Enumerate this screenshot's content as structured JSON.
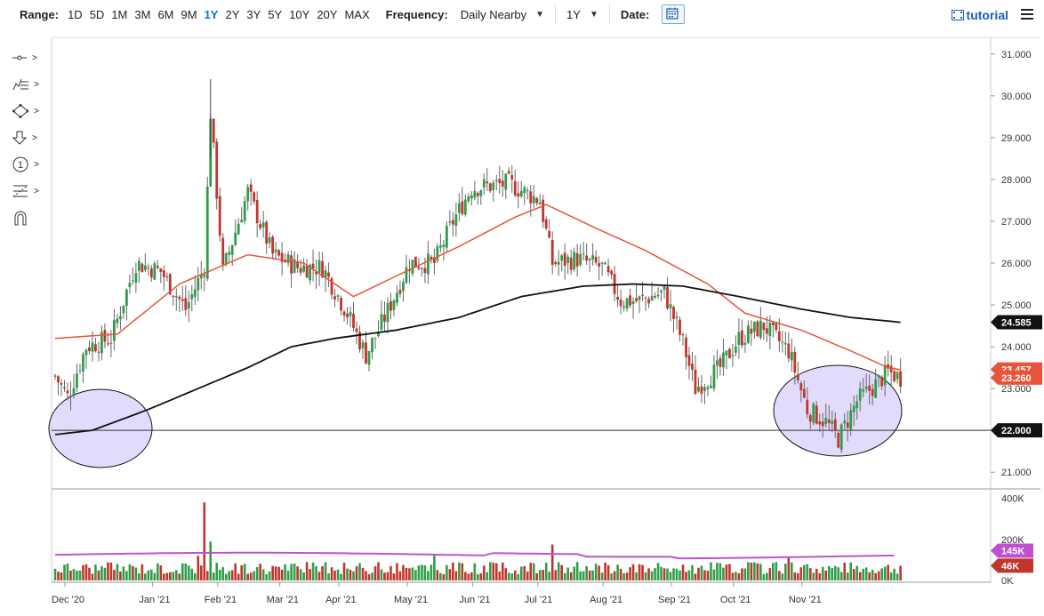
{
  "toolbar": {
    "range_label": "Range:",
    "ranges": [
      "1D",
      "5D",
      "1M",
      "3M",
      "6M",
      "9M",
      "1Y",
      "2Y",
      "3Y",
      "5Y",
      "10Y",
      "20Y",
      "MAX"
    ],
    "active_range": "1Y",
    "frequency_label": "Frequency:",
    "frequency_value": "Daily Nearby",
    "period_value": "1Y",
    "date_label": "Date:",
    "tutorial_label": "tutorial"
  },
  "tools": [
    "crosshair-icon",
    "indicator-list-icon",
    "shapes-icon",
    "arrow-down-icon",
    "number-circle-icon",
    "fibonacci-icon",
    "magnet-icon"
  ],
  "colors": {
    "up": "#2e9e4a",
    "down": "#c2352b",
    "ma_short": "#e8543a",
    "ma_long": "#111111",
    "vol_avg": "#c050d0",
    "highlight_fill": "#d9cffa",
    "highlight_stroke": "#111111"
  },
  "chart_data": {
    "type": "candlestick",
    "y_ticks": [
      "31.000",
      "30.000",
      "29.000",
      "28.000",
      "27.000",
      "26.000",
      "25.000",
      "24.000",
      "23.000",
      "22.000",
      "21.000"
    ],
    "y_range": [
      20.6,
      31.4
    ],
    "x_labels": [
      "Dec '20",
      "Jan '21",
      "Feb '21",
      "Mar '21",
      "Apr '21",
      "May '21",
      "Jun '21",
      "Jul '21",
      "Aug '21",
      "Sep '21",
      "Oct '21",
      "Nov '21"
    ],
    "price_key_points": [
      [
        0,
        23.3
      ],
      [
        4,
        22.8
      ],
      [
        10,
        24.0
      ],
      [
        18,
        24.2
      ],
      [
        26,
        26.0
      ],
      [
        34,
        25.8
      ],
      [
        42,
        24.9
      ],
      [
        48,
        25.9
      ],
      [
        50,
        29.6
      ],
      [
        54,
        25.8
      ],
      [
        62,
        27.7
      ],
      [
        70,
        26.2
      ],
      [
        78,
        25.9
      ],
      [
        86,
        25.9
      ],
      [
        94,
        24.8
      ],
      [
        100,
        23.8
      ],
      [
        106,
        24.7
      ],
      [
        114,
        26.0
      ],
      [
        122,
        26.0
      ],
      [
        128,
        27.0
      ],
      [
        134,
        27.8
      ],
      [
        146,
        27.9
      ],
      [
        156,
        27.5
      ],
      [
        160,
        26.0
      ],
      [
        168,
        26.1
      ],
      [
        176,
        25.9
      ],
      [
        182,
        25.1
      ],
      [
        188,
        25.1
      ],
      [
        196,
        25.3
      ],
      [
        202,
        24.1
      ],
      [
        206,
        23.0
      ],
      [
        214,
        23.5
      ],
      [
        220,
        24.2
      ],
      [
        228,
        24.5
      ],
      [
        236,
        23.9
      ],
      [
        242,
        22.5
      ],
      [
        248,
        22.2
      ],
      [
        252,
        21.8
      ],
      [
        258,
        22.7
      ],
      [
        264,
        23.1
      ],
      [
        268,
        23.4
      ],
      [
        272,
        23.26
      ]
    ],
    "ma_short_points": [
      [
        0,
        24.2
      ],
      [
        20,
        24.3
      ],
      [
        40,
        25.5
      ],
      [
        62,
        26.2
      ],
      [
        80,
        26.0
      ],
      [
        96,
        25.2
      ],
      [
        110,
        25.7
      ],
      [
        130,
        26.4
      ],
      [
        148,
        27.1
      ],
      [
        158,
        27.4
      ],
      [
        175,
        26.8
      ],
      [
        190,
        26.3
      ],
      [
        210,
        25.5
      ],
      [
        222,
        24.8
      ],
      [
        240,
        24.4
      ],
      [
        256,
        23.9
      ],
      [
        268,
        23.5
      ],
      [
        272,
        23.45
      ]
    ],
    "ma_long_points": [
      [
        0,
        21.9
      ],
      [
        12,
        22.0
      ],
      [
        30,
        22.5
      ],
      [
        46,
        23.0
      ],
      [
        62,
        23.5
      ],
      [
        76,
        24.0
      ],
      [
        90,
        24.2
      ],
      [
        110,
        24.4
      ],
      [
        130,
        24.7
      ],
      [
        150,
        25.2
      ],
      [
        170,
        25.45
      ],
      [
        186,
        25.5
      ],
      [
        202,
        25.45
      ],
      [
        220,
        25.2
      ],
      [
        240,
        24.9
      ],
      [
        256,
        24.7
      ],
      [
        272,
        24.585
      ]
    ],
    "levels": {
      "last_price": "23.260",
      "ma_short": "23.457",
      "ma_long": "24.585",
      "reference_line": "22.000"
    },
    "volume": {
      "ticks": [
        "400K",
        "200K",
        "0K"
      ],
      "avg_label": "145K",
      "last_label": "46K",
      "spikes": [
        [
          48,
          380
        ],
        [
          50,
          190
        ],
        [
          46,
          120
        ],
        [
          160,
          175
        ],
        [
          236,
          110
        ],
        [
          122,
          125
        ]
      ]
    },
    "highlight_ellipses": [
      "left-support-zone",
      "right-support-zone"
    ]
  }
}
